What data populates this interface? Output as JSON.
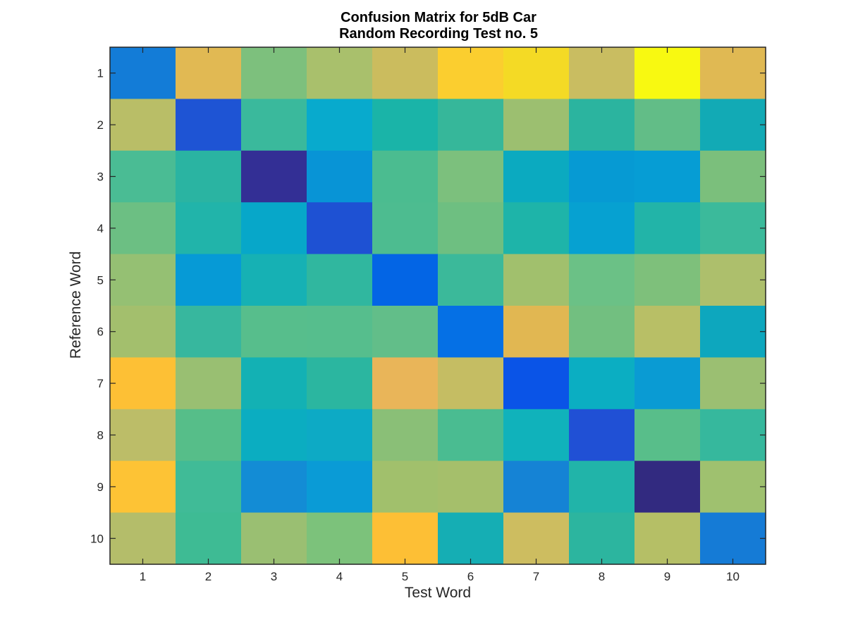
{
  "chart_data": {
    "type": "heatmap",
    "title": [
      "Confusion Matrix for 5dB Car",
      "Random Recording Test no. 5"
    ],
    "xlabel": "Test Word",
    "ylabel": "Reference Word",
    "x_categories": [
      "1",
      "2",
      "3",
      "4",
      "5",
      "6",
      "7",
      "8",
      "9",
      "10"
    ],
    "y_categories": [
      "1",
      "2",
      "3",
      "4",
      "5",
      "6",
      "7",
      "8",
      "9",
      "10"
    ],
    "colormap": "parula",
    "grid": false,
    "colorbar": false,
    "cell_colors": [
      [
        "#137CD7",
        "#E1B953",
        "#7DC07D",
        "#A9C06C",
        "#CBBC5E",
        "#FBCE2F",
        "#F4DA25",
        "#C9BD61",
        "#F8F911",
        "#E0B953"
      ],
      [
        "#B9BE67",
        "#1E54D4",
        "#3AB99C",
        "#08AACD",
        "#1AB4A8",
        "#36B79A",
        "#9CBF70",
        "#2BB49F",
        "#62BD87",
        "#12AAB5"
      ],
      [
        "#4ABC94",
        "#2AB4A2",
        "#332F95",
        "#0894D6",
        "#4BBC90",
        "#7CC07D",
        "#0BAAC0",
        "#069AD3",
        "#069DD4",
        "#7BBF7C"
      ],
      [
        "#6CBF83",
        "#21B4AA",
        "#07A7C9",
        "#1E51D3",
        "#4DBC90",
        "#6EBF81",
        "#1EB4A9",
        "#06A1D1",
        "#22B4A8",
        "#3BBA9B"
      ],
      [
        "#95C073",
        "#069AD6",
        "#16B1B4",
        "#30B79F",
        "#0365E5",
        "#3BB99A",
        "#A1C06D",
        "#6BC186",
        "#7EC07B",
        "#ADBF6C"
      ],
      [
        "#A3BF6D",
        "#37B79E",
        "#57BE8C",
        "#56BE8D",
        "#62BE89",
        "#0570E5",
        "#E1B752",
        "#72BF80",
        "#B8BF66",
        "#0DA7BE"
      ],
      [
        "#FDC035",
        "#99BF72",
        "#13B1B4",
        "#2BB6A0",
        "#E9B559",
        "#C5BD63",
        "#0A54E7",
        "#0BAEC2",
        "#0A9BD3",
        "#9BBF72"
      ],
      [
        "#BCBD68",
        "#56BE89",
        "#0BADC1",
        "#0DAAC5",
        "#8ABF77",
        "#4ABC91",
        "#10B2BB",
        "#2050D5",
        "#58BE8A",
        "#36B89D"
      ],
      [
        "#FDC335",
        "#40BB97",
        "#138CD5",
        "#0A9BD6",
        "#A1C06C",
        "#A5BF6B",
        "#1583D5",
        "#21B4A9",
        "#322A80",
        "#9FC16F"
      ],
      [
        "#B4BD6A",
        "#3EBB94",
        "#9ABF72",
        "#7CC27B",
        "#FDBF35",
        "#15AEB4",
        "#CDBD60",
        "#2CB59F",
        "#B5BF66",
        "#157BD6"
      ]
    ]
  }
}
